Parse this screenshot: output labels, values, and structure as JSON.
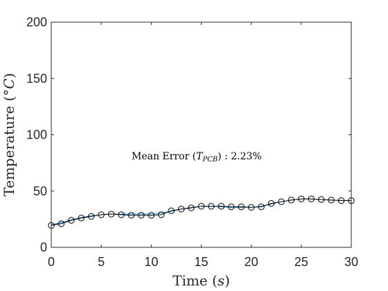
{
  "chart_data": {
    "type": "line",
    "xlabel_text": "Time (",
    "xlabel_var": "s",
    "xlabel_close": ")",
    "ylabel_text": "Temperature (°",
    "ylabel_var": "C",
    "ylabel_close": ")",
    "annotation": {
      "prefix": "Mean Error (",
      "var": "T",
      "sub": "PCB",
      "suffix": ") : 2.23%"
    },
    "xlim": [
      0,
      30
    ],
    "ylim": [
      0,
      200
    ],
    "xticks": [
      0,
      5,
      10,
      15,
      20,
      25,
      30
    ],
    "yticks": [
      0,
      50,
      100,
      150,
      200
    ],
    "grid": false,
    "series": [
      {
        "style": "line",
        "color": "#0072BD",
        "x": [
          0,
          1,
          2,
          3,
          4,
          5,
          6,
          7,
          8,
          9,
          10,
          11,
          12,
          13,
          14,
          15,
          16,
          17,
          18,
          19,
          20,
          21,
          22,
          23,
          24,
          25,
          26,
          27,
          28,
          29,
          30
        ],
        "y": [
          20,
          22,
          24.5,
          26.5,
          28,
          29,
          29.5,
          29.5,
          29.5,
          29.5,
          29.5,
          30.5,
          32,
          34,
          35.5,
          36.5,
          36.5,
          36,
          35.5,
          35.5,
          35.5,
          36.5,
          38.5,
          40.5,
          42,
          43,
          43,
          42.5,
          42,
          41.5,
          41.5
        ]
      },
      {
        "style": "line-markers",
        "color": "#000000",
        "marker": "circle",
        "x": [
          0,
          1,
          2,
          3,
          4,
          5,
          6,
          7,
          8,
          9,
          10,
          11,
          12,
          13,
          14,
          15,
          16,
          17,
          18,
          19,
          20,
          21,
          22,
          23,
          24,
          25,
          26,
          27,
          28,
          29,
          30
        ],
        "y": [
          19.5,
          21,
          24,
          26,
          27.5,
          29,
          29.5,
          29,
          28.5,
          28.5,
          28.5,
          29,
          32.5,
          34,
          35,
          36.5,
          36.5,
          36.5,
          36,
          36,
          35.5,
          36,
          39,
          40.5,
          42,
          43,
          43,
          42.5,
          42,
          41.5,
          41.5
        ]
      }
    ]
  }
}
